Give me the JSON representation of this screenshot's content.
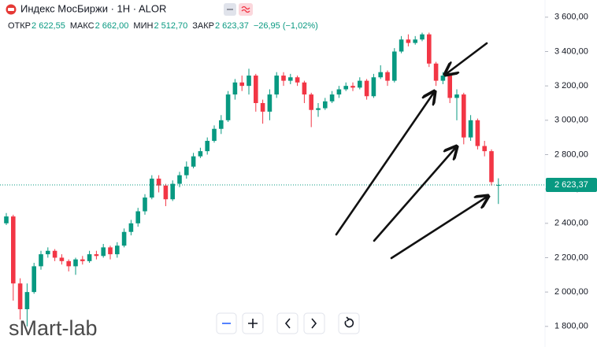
{
  "chart_data": {
    "type": "candlestick",
    "title": "Индекс МосБиржи · 1H · ALOR",
    "header": [
      {
        "name": "ОТКР",
        "value": 2622.55,
        "label": "2 622,55"
      },
      {
        "name": "МАКС",
        "value": 2662.0,
        "label": "2 662,00"
      },
      {
        "name": "МИН",
        "value": 2512.7,
        "label": "2 512,70"
      },
      {
        "name": "ЗАКР",
        "value": 2623.37,
        "label": "2 623,37"
      }
    ],
    "change": {
      "value": -26.95,
      "percent": -1.02,
      "label": "−26,95 (−1,02%)"
    },
    "watermark": "sMart-lab",
    "open": [
      2400,
      2440,
      2050,
      1900,
      2000,
      2150,
      2220,
      2240,
      2200,
      2180,
      2150,
      2190,
      2180,
      2220,
      2210,
      2260,
      2220,
      2270,
      2350,
      2400,
      2470,
      2550,
      2660,
      2620,
      2540,
      2630,
      2680,
      2730,
      2790,
      2820,
      2880,
      2950,
      3000,
      3150,
      3220,
      3200,
      3260,
      3100,
      3050,
      3150,
      3260,
      3230,
      3250,
      3220,
      3150,
      3060,
      3070,
      3110,
      3150,
      3180,
      3200,
      3190,
      3230,
      3140,
      3250,
      3280,
      3230,
      3400,
      3470,
      3450,
      3470,
      3500,
      3330,
      3230,
      3260,
      3130,
      3150,
      2900,
      3000,
      2850,
      2820,
      2622.55
    ],
    "high": [
      2460,
      2450,
      2080,
      2050,
      2170,
      2240,
      2260,
      2250,
      2220,
      2190,
      2200,
      2210,
      2240,
      2240,
      2280,
      2270,
      2290,
      2370,
      2420,
      2490,
      2570,
      2680,
      2680,
      2630,
      2650,
      2700,
      2760,
      2810,
      2840,
      2900,
      2970,
      3030,
      3170,
      3240,
      3260,
      3300,
      3270,
      3120,
      3180,
      3280,
      3280,
      3270,
      3260,
      3230,
      3160,
      3100,
      3130,
      3170,
      3200,
      3220,
      3220,
      3250,
      3240,
      3270,
      3320,
      3290,
      3420,
      3490,
      3500,
      3490,
      3510,
      3510,
      3340,
      3280,
      3270,
      3180,
      3160,
      3030,
      3010,
      2880,
      2830,
      2662
    ],
    "low": [
      2390,
      1950,
      1840,
      1800,
      1990,
      2130,
      2200,
      2180,
      2160,
      2120,
      2100,
      2160,
      2170,
      2190,
      2200,
      2190,
      2200,
      2260,
      2330,
      2380,
      2450,
      2540,
      2580,
      2500,
      2530,
      2610,
      2660,
      2720,
      2780,
      2800,
      2870,
      2920,
      2990,
      3120,
      3170,
      3150,
      3050,
      2980,
      3000,
      3130,
      3200,
      3210,
      3200,
      3100,
      2960,
      3020,
      3060,
      3100,
      3130,
      3170,
      3170,
      3180,
      3120,
      3130,
      3240,
      3200,
      3220,
      3390,
      3430,
      3440,
      3460,
      3310,
      3200,
      3210,
      3100,
      3000,
      2860,
      2880,
      2830,
      2790,
      2620,
      2512.7
    ],
    "close": [
      2440,
      2050,
      1900,
      2000,
      2150,
      2220,
      2240,
      2200,
      2180,
      2150,
      2190,
      2180,
      2220,
      2210,
      2260,
      2220,
      2270,
      2350,
      2400,
      2470,
      2550,
      2660,
      2620,
      2540,
      2630,
      2680,
      2730,
      2790,
      2820,
      2880,
      2950,
      3000,
      3150,
      3220,
      3200,
      3260,
      3100,
      3050,
      3150,
      3260,
      3230,
      3250,
      3220,
      3150,
      3060,
      3070,
      3110,
      3150,
      3180,
      3200,
      3190,
      3230,
      3140,
      3250,
      3280,
      3230,
      3400,
      3470,
      3450,
      3470,
      3500,
      3330,
      3230,
      3260,
      3130,
      3150,
      2900,
      3000,
      2850,
      2820,
      2640,
      2623.37
    ],
    "up_color": "#089981",
    "down_color": "#f23645",
    "ylim": [
      1680,
      3700
    ],
    "yticks": [
      {
        "value": 1800,
        "label": "1 800,00"
      },
      {
        "value": 2000,
        "label": "2 000,00"
      },
      {
        "value": 2200,
        "label": "2 200,00"
      },
      {
        "value": 2400,
        "label": "2 400,00"
      },
      {
        "value": 2600,
        "label": "2 600,00"
      },
      {
        "value": 2800,
        "label": "2 800,00"
      },
      {
        "value": 3000,
        "label": "3 000,00"
      },
      {
        "value": 3200,
        "label": "3 200,00"
      },
      {
        "value": 3400,
        "label": "3 400,00"
      },
      {
        "value": 3600,
        "label": "3 600,00"
      }
    ],
    "last_price": {
      "value": 2623.37,
      "label": "2 623,37"
    },
    "grid": false
  }
}
